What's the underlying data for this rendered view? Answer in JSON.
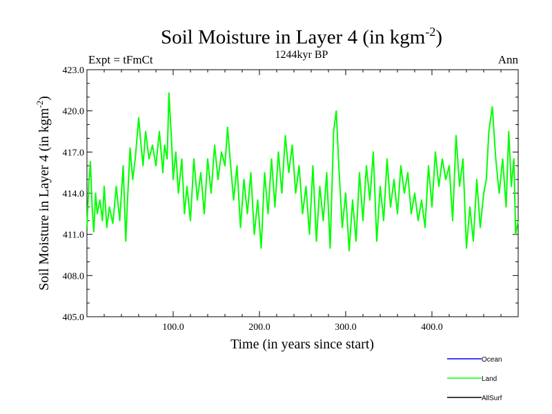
{
  "chart_data": {
    "type": "line",
    "title": "Soil Moisture in Layer 4 (in kgm",
    "title_superscript": "-2",
    "title_close": ")",
    "subtitle": "1244kyr BP",
    "left_label": "Expt = tFmCt",
    "right_label": "Ann",
    "xlabel": "Time (in years since start)",
    "ylabel": "Soil Moisture in Layer 4 (in kgm",
    "ylabel_superscript": "-2",
    "ylabel_close": ")",
    "xlim": [
      0,
      500
    ],
    "ylim": [
      405,
      423
    ],
    "x_ticks": [
      100,
      200,
      300,
      400
    ],
    "x_tick_labels": [
      "100.0",
      "200.0",
      "300.0",
      "400.0"
    ],
    "y_ticks": [
      405,
      408,
      411,
      414,
      417,
      420,
      423
    ],
    "y_tick_labels": [
      "405.0",
      "408.0",
      "411.0",
      "414.0",
      "417.0",
      "420.0",
      "423.0"
    ],
    "legend": [
      {
        "name": "Ocean",
        "color": "#0000ff"
      },
      {
        "name": "Land",
        "color": "#00ff00"
      },
      {
        "name": "AllSurf",
        "color": "#000000"
      }
    ],
    "series": [
      {
        "name": "Land",
        "color": "#00ff00",
        "x": [
          0,
          2,
          4,
          6,
          8,
          10,
          12,
          15,
          18,
          20,
          23,
          26,
          30,
          34,
          38,
          42,
          45,
          47,
          50,
          53,
          56,
          60,
          62,
          65,
          68,
          72,
          76,
          80,
          84,
          88,
          90,
          93,
          95,
          98,
          100,
          103,
          106,
          110,
          113,
          116,
          120,
          124,
          128,
          132,
          136,
          140,
          144,
          148,
          152,
          156,
          160,
          163,
          166,
          170,
          174,
          178,
          182,
          186,
          190,
          194,
          198,
          202,
          206,
          210,
          214,
          218,
          222,
          226,
          230,
          234,
          238,
          242,
          246,
          250,
          254,
          258,
          262,
          266,
          270,
          274,
          278,
          282,
          286,
          289,
          292,
          296,
          300,
          304,
          308,
          312,
          316,
          320,
          324,
          328,
          332,
          336,
          340,
          344,
          348,
          352,
          356,
          360,
          364,
          368,
          372,
          376,
          380,
          384,
          388,
          392,
          396,
          400,
          404,
          408,
          412,
          416,
          420,
          424,
          428,
          432,
          436,
          440,
          444,
          448,
          452,
          456,
          460,
          463,
          466,
          470,
          474,
          478,
          482,
          486,
          489,
          492,
          495,
          497,
          500
        ],
        "values": [
          411.5,
          414.5,
          416.3,
          413.0,
          411.2,
          414.0,
          412.5,
          413.5,
          412.0,
          414.5,
          411.5,
          413.0,
          411.8,
          414.5,
          412.0,
          416.0,
          410.5,
          413.5,
          417.3,
          415.0,
          416.5,
          419.5,
          418.0,
          416.0,
          418.5,
          416.5,
          417.5,
          416.0,
          418.5,
          415.5,
          417.5,
          416.5,
          421.3,
          418.0,
          415.0,
          417.0,
          414.0,
          416.5,
          412.5,
          414.5,
          412.0,
          416.5,
          413.5,
          415.5,
          412.5,
          416.5,
          414.0,
          417.5,
          415.0,
          417.0,
          416.0,
          418.8,
          416.5,
          413.5,
          416.0,
          411.5,
          415.0,
          412.5,
          415.5,
          411.0,
          413.5,
          410.0,
          415.5,
          412.5,
          416.5,
          413.0,
          417.0,
          414.0,
          418.2,
          415.5,
          417.5,
          414.0,
          416.0,
          412.5,
          414.5,
          411.0,
          416.0,
          410.5,
          414.5,
          412.0,
          415.5,
          410.0,
          418.5,
          420.0,
          416.0,
          411.5,
          414.0,
          409.8,
          413.5,
          410.5,
          415.5,
          412.0,
          416.0,
          413.5,
          417.0,
          410.5,
          414.5,
          412.0,
          416.5,
          413.0,
          415.0,
          412.5,
          416.0,
          414.0,
          415.5,
          412.5,
          414.0,
          412.0,
          413.5,
          411.5,
          416.0,
          413.0,
          417.0,
          414.5,
          416.5,
          415.0,
          416.0,
          412.0,
          418.2,
          414.5,
          416.5,
          410.0,
          413.0,
          410.5,
          415.0,
          411.5,
          414.0,
          415.0,
          418.5,
          420.3,
          416.5,
          414.0,
          416.5,
          413.0,
          418.5,
          414.5,
          416.5,
          411.0,
          412.0
        ]
      }
    ]
  }
}
